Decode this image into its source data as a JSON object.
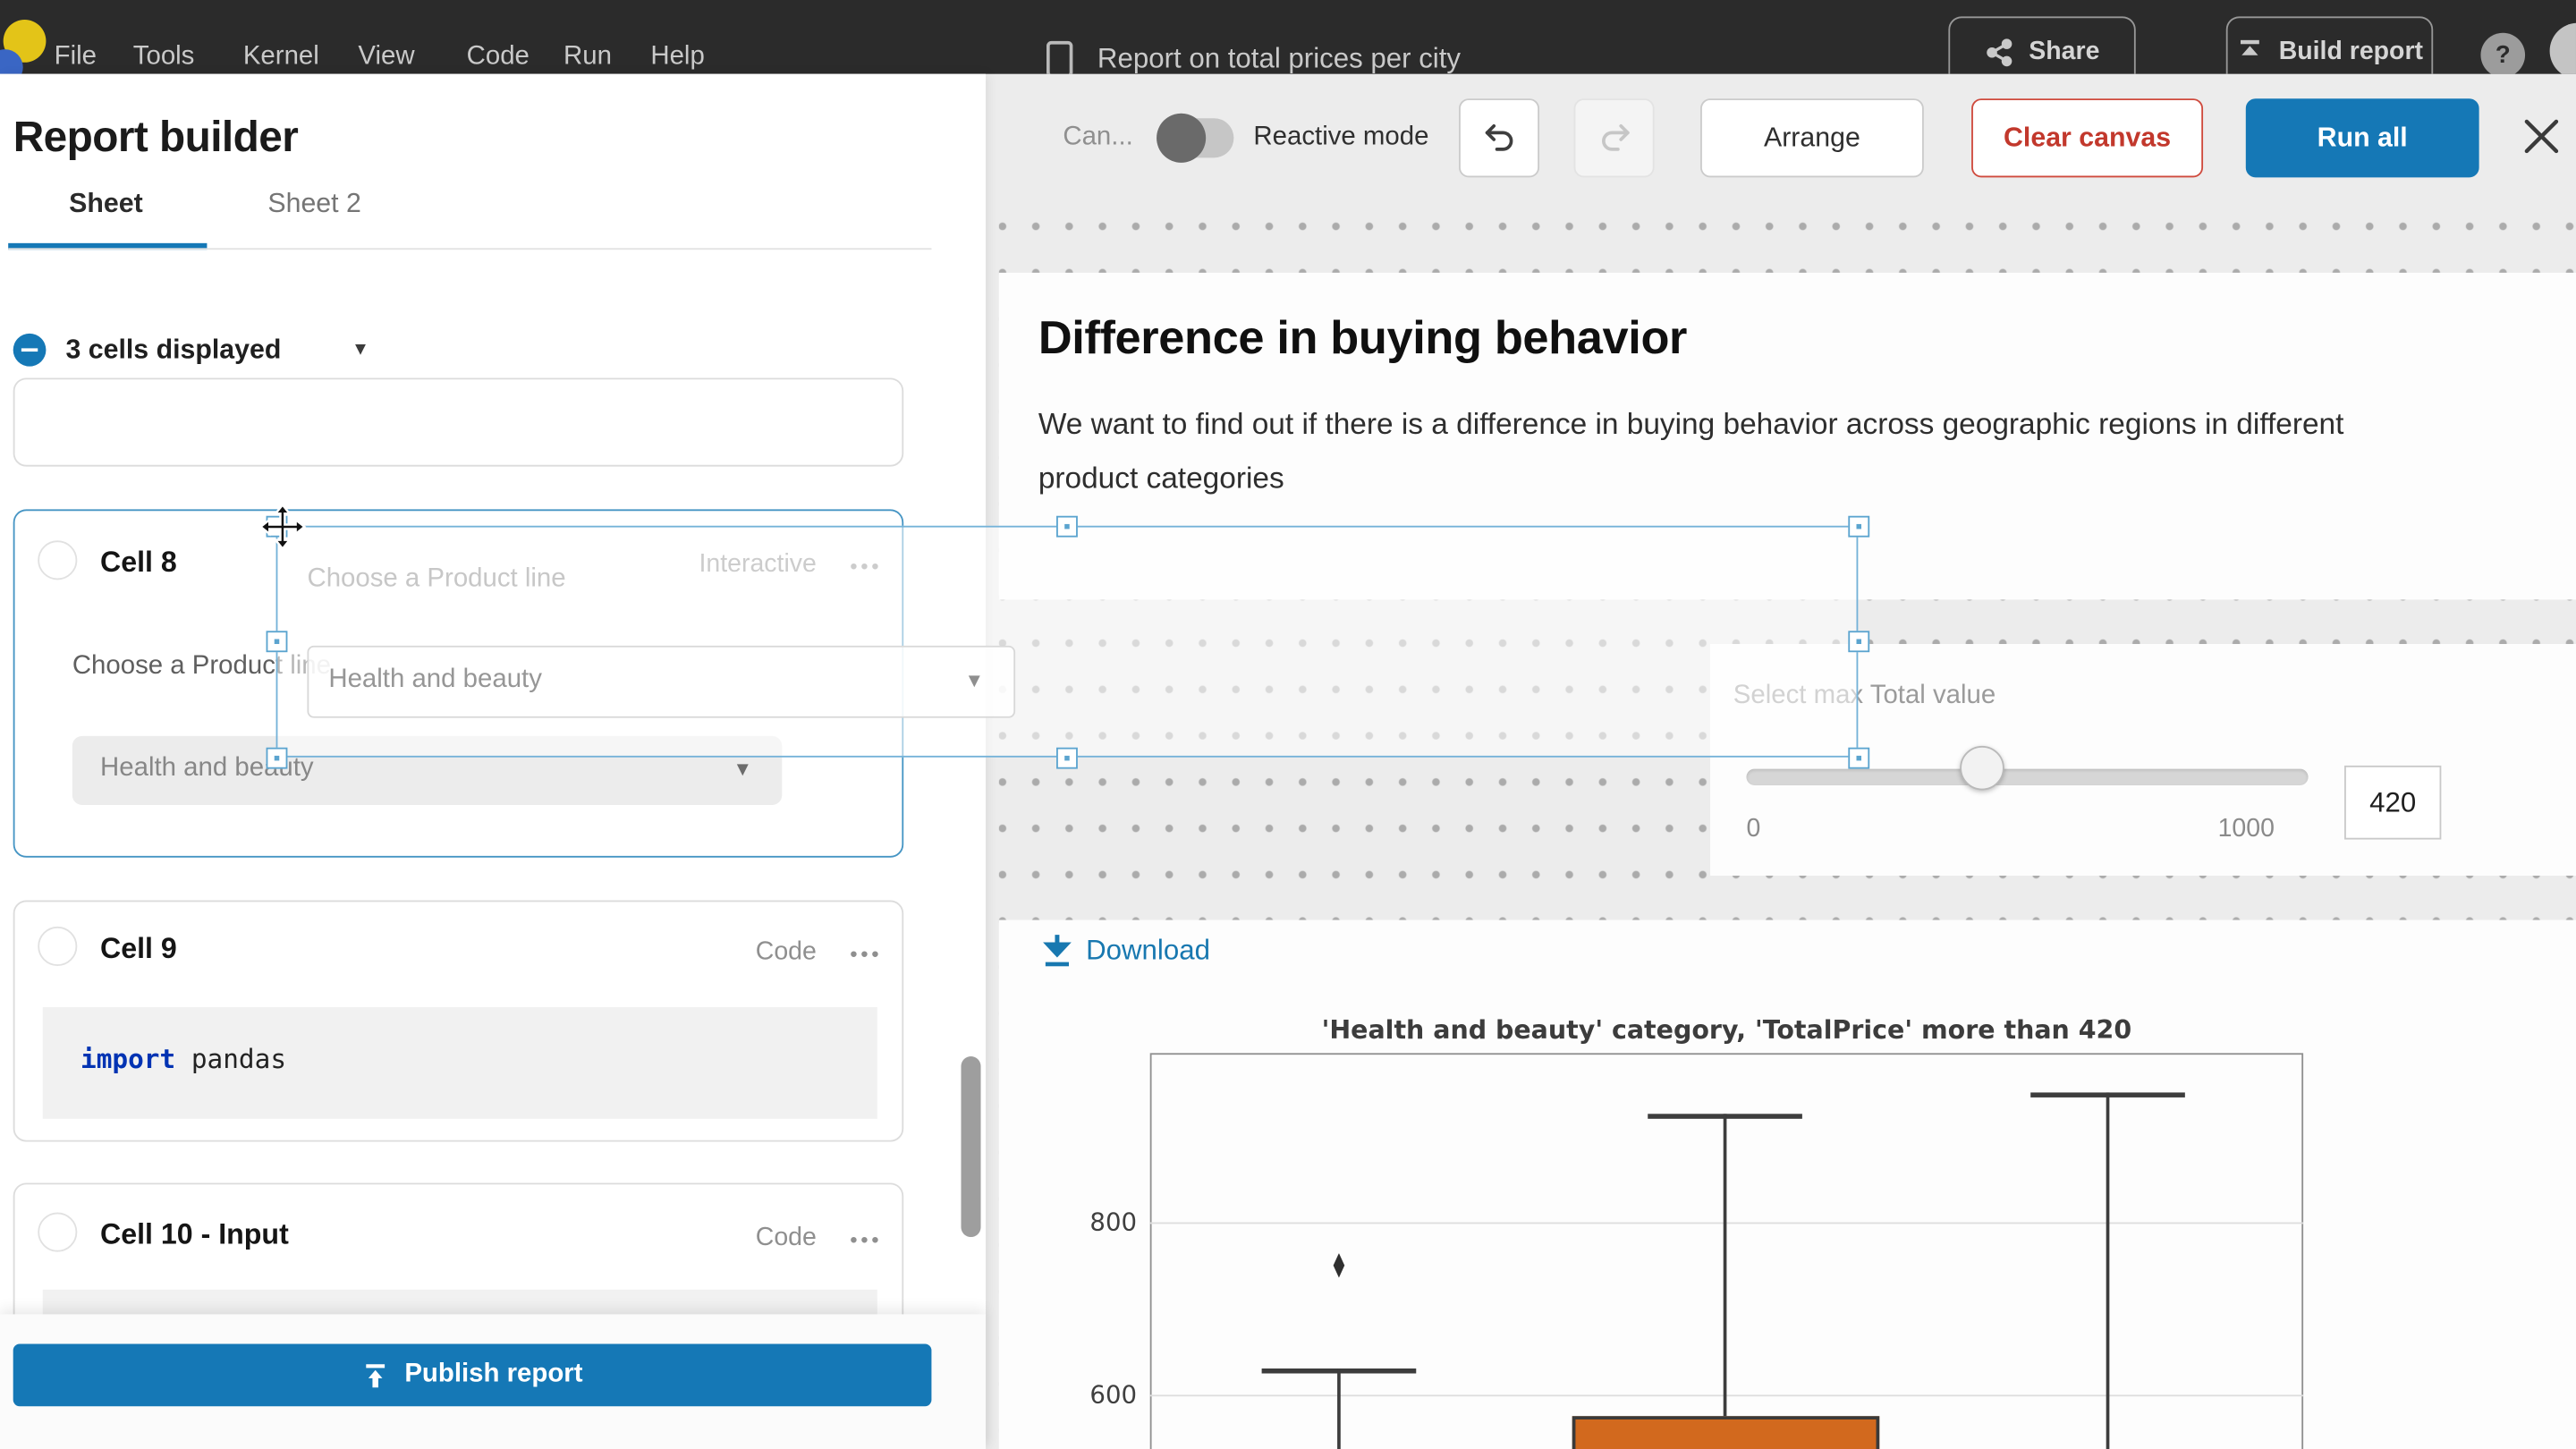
{
  "colors": {
    "accent_blue": "#1578b6",
    "danger_red": "#c2382c",
    "link_blue": "#1878b0",
    "selection_blue": "#5ba4cf",
    "box_orange": "#d2691e"
  },
  "top_bar": {
    "menus": [
      "File",
      "Tools",
      "Kernel",
      "View",
      "Code",
      "Run",
      "Help"
    ],
    "notebook_title": "Report on total prices per city",
    "share_label": "Share",
    "build_report_label": "Build report",
    "help_label": "?"
  },
  "sidebar": {
    "title": "Report builder",
    "tabs": [
      {
        "label": "Sheet",
        "active": true
      },
      {
        "label": "Sheet 2",
        "active": false
      }
    ],
    "cells_summary": "3 cells displayed",
    "cells": [
      {
        "name": "Cell 8",
        "type": "Interactive",
        "menu": "•••",
        "label": "Choose a Product line",
        "dropdown_value": "Health and beauty"
      },
      {
        "name": "Cell 9",
        "type": "Code",
        "menu": "•••",
        "code_keyword": "import",
        "code_rest": " pandas"
      },
      {
        "name": "Cell 10 - Input",
        "type": "Code",
        "menu": "•••"
      }
    ],
    "publish_label": "Publish report"
  },
  "toolbar": {
    "canvas_truncated": "Can...",
    "reactive_mode_label": "Reactive mode",
    "arrange_label": "Arrange",
    "clear_canvas_label": "Clear canvas",
    "run_all_label": "Run all"
  },
  "canvas": {
    "heading": "Difference in buying behavior",
    "paragraph_line1": "We want to find out if there is a difference in buying behavior across geographic regions in different",
    "paragraph_line2": "product categories",
    "ghost_widget": {
      "label": "Choose a Product line",
      "dropdown_value": "Health and beauty",
      "caret": "▼"
    },
    "slider": {
      "label": "Select max Total value",
      "min": "0",
      "max": "1000",
      "value": "420"
    },
    "download_label": "Download"
  },
  "chart_data": {
    "type": "boxplot",
    "title": "'Health and beauty' category, 'TotalPrice' more than 420",
    "yticks": [
      600,
      800
    ],
    "grid": "horizontal gridlines at y-ticks",
    "note": "figure clipped at bottom edge of viewport; only upper whiskers, one outlier and top of one box visible",
    "groups": [
      {
        "upper_cap": 630,
        "outlier_flier": 750
      },
      {
        "upper_cap": 925,
        "box_top": 575
      },
      {
        "upper_cap": 950
      }
    ]
  }
}
